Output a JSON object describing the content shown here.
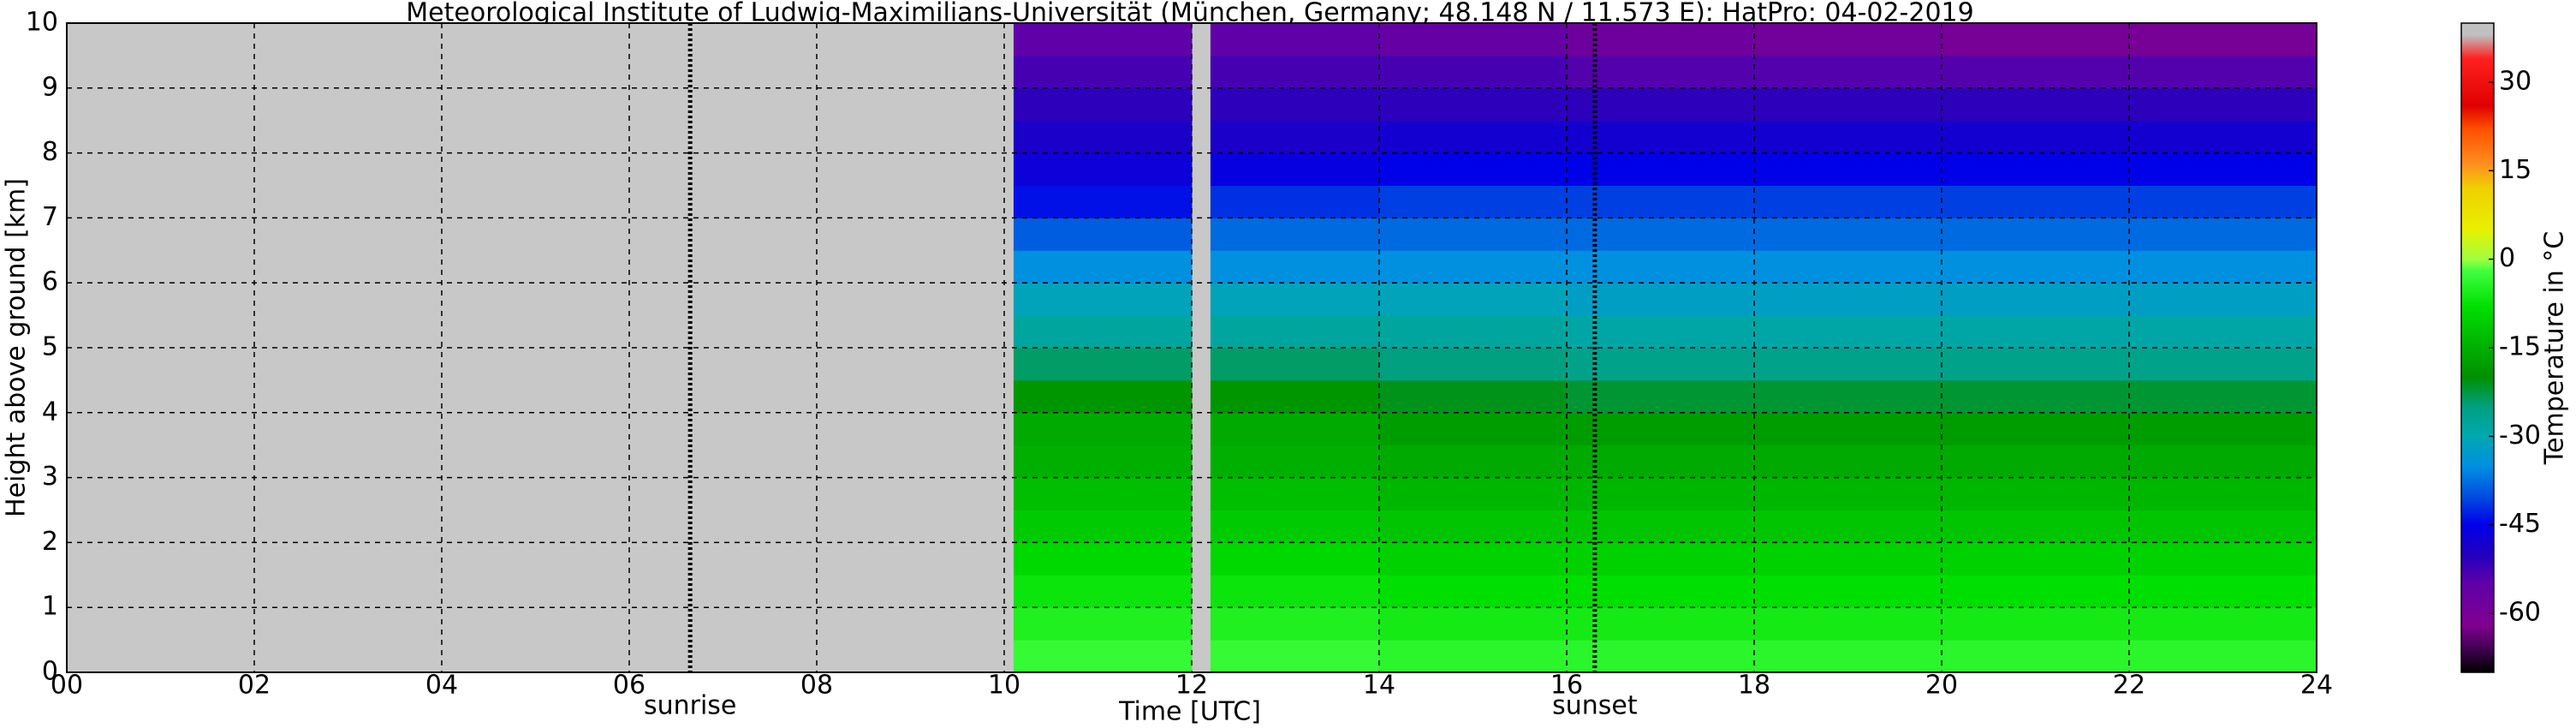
{
  "chart_data": {
    "type": "heatmap",
    "title": "Meteorological Institute of Ludwig-Maximilians-Universität (München, Germany; 48.148 N / 11.573 E):    HatPro: 04-02-2019",
    "x_label": "Time [UTC]",
    "y_label": "Height above ground [km]",
    "xlim": [
      0,
      24
    ],
    "ylim": [
      0,
      10
    ],
    "xticks": [
      {
        "value": 0,
        "label": "00"
      },
      {
        "value": 2,
        "label": "02"
      },
      {
        "value": 4,
        "label": "04"
      },
      {
        "value": 6,
        "label": "06"
      },
      {
        "value": 8,
        "label": "08"
      },
      10,
      12,
      14,
      16,
      18,
      20,
      22,
      24
    ],
    "yticks": [
      0,
      1,
      2,
      3,
      4,
      5,
      6,
      7,
      8,
      9,
      10
    ],
    "grid": true,
    "missing_color": "#c8c8c8",
    "xbins": [
      10.1,
      12,
      12.2,
      14,
      16,
      18,
      20,
      22,
      24
    ],
    "ybins": [
      0,
      0.5,
      1,
      1.5,
      2,
      2.5,
      3,
      3.5,
      4,
      4.5,
      5,
      5.5,
      6,
      6.5,
      7,
      7.5,
      8,
      8.5,
      9,
      9.5,
      10
    ],
    "z": [
      [
        -3,
        null,
        -3,
        -4,
        -4,
        -4,
        -4,
        -4
      ],
      [
        -5,
        null,
        -5,
        -6,
        -6,
        -6,
        -6,
        -6
      ],
      [
        -7,
        null,
        -7,
        -8,
        -8,
        -8,
        -8,
        -8
      ],
      [
        -9,
        null,
        -9,
        -10,
        -10,
        -10,
        -10,
        -10
      ],
      [
        -11,
        null,
        -11,
        -12,
        -12,
        -12,
        -12,
        -12
      ],
      [
        -13,
        null,
        -13,
        -14,
        -14,
        -14,
        -14,
        -14
      ],
      [
        -15,
        null,
        -15,
        -16,
        -16,
        -16,
        -16,
        -16
      ],
      [
        -16,
        null,
        -16,
        -18,
        -18,
        -18,
        -18,
        -18
      ],
      [
        -19,
        null,
        -19,
        -21,
        -22,
        -22,
        -22,
        -22
      ],
      [
        -24,
        null,
        -24,
        -25,
        -26,
        -26,
        -26,
        -26
      ],
      [
        -28,
        null,
        -28,
        -28,
        -29,
        -29,
        -29,
        -29
      ],
      [
        -31,
        null,
        -31,
        -31,
        -32,
        -32,
        -32,
        -32
      ],
      [
        -35,
        null,
        -35,
        -35,
        -35,
        -35,
        -35,
        -35
      ],
      [
        -39,
        null,
        -38,
        -38,
        -38,
        -38,
        -38,
        -38
      ],
      [
        -44,
        null,
        -42,
        -41,
        -41,
        -41,
        -41,
        -41
      ],
      [
        -47,
        null,
        -46,
        -45,
        -45,
        -45,
        -45,
        -45
      ],
      [
        -49,
        null,
        -49,
        -48,
        -48,
        -48,
        -48,
        -48
      ],
      [
        -51,
        null,
        -51,
        -51,
        -51,
        -51,
        -51,
        -51
      ],
      [
        -53,
        null,
        -53,
        -53,
        -54,
        -54,
        -54,
        -54
      ],
      [
        -55,
        null,
        -55,
        -56,
        -58,
        -59,
        -60,
        -60
      ]
    ],
    "colorbar": {
      "label": "Temperature in °C",
      "zlim": [
        -70,
        40
      ],
      "zticks": [
        -60,
        -45,
        -30,
        -15,
        0,
        15,
        30
      ]
    },
    "colorscale": [
      [
        -70,
        "#000000"
      ],
      [
        -66,
        "#400050"
      ],
      [
        -62,
        "#800090"
      ],
      [
        -55,
        "#6000a8"
      ],
      [
        -50,
        "#2000c0"
      ],
      [
        -45,
        "#0000e8"
      ],
      [
        -40,
        "#0050e0"
      ],
      [
        -35,
        "#0090e0"
      ],
      [
        -30,
        "#00a8b0"
      ],
      [
        -25,
        "#00a080"
      ],
      [
        -20,
        "#009000"
      ],
      [
        -15,
        "#00b000"
      ],
      [
        -8,
        "#00e000"
      ],
      [
        -2,
        "#40ff40"
      ],
      [
        0,
        "#a0ff40"
      ],
      [
        5,
        "#e8f000"
      ],
      [
        12,
        "#f0d000"
      ],
      [
        16,
        "#ff9020"
      ],
      [
        22,
        "#ff5000"
      ],
      [
        26,
        "#e00000"
      ],
      [
        34,
        "#ff2020"
      ],
      [
        38,
        "#c0c0c0"
      ],
      [
        40,
        "#c0c0c0"
      ]
    ],
    "annotations": [
      {
        "x": 6.65,
        "label": "sunrise"
      },
      {
        "x": 16.3,
        "label": "sunset"
      }
    ]
  }
}
